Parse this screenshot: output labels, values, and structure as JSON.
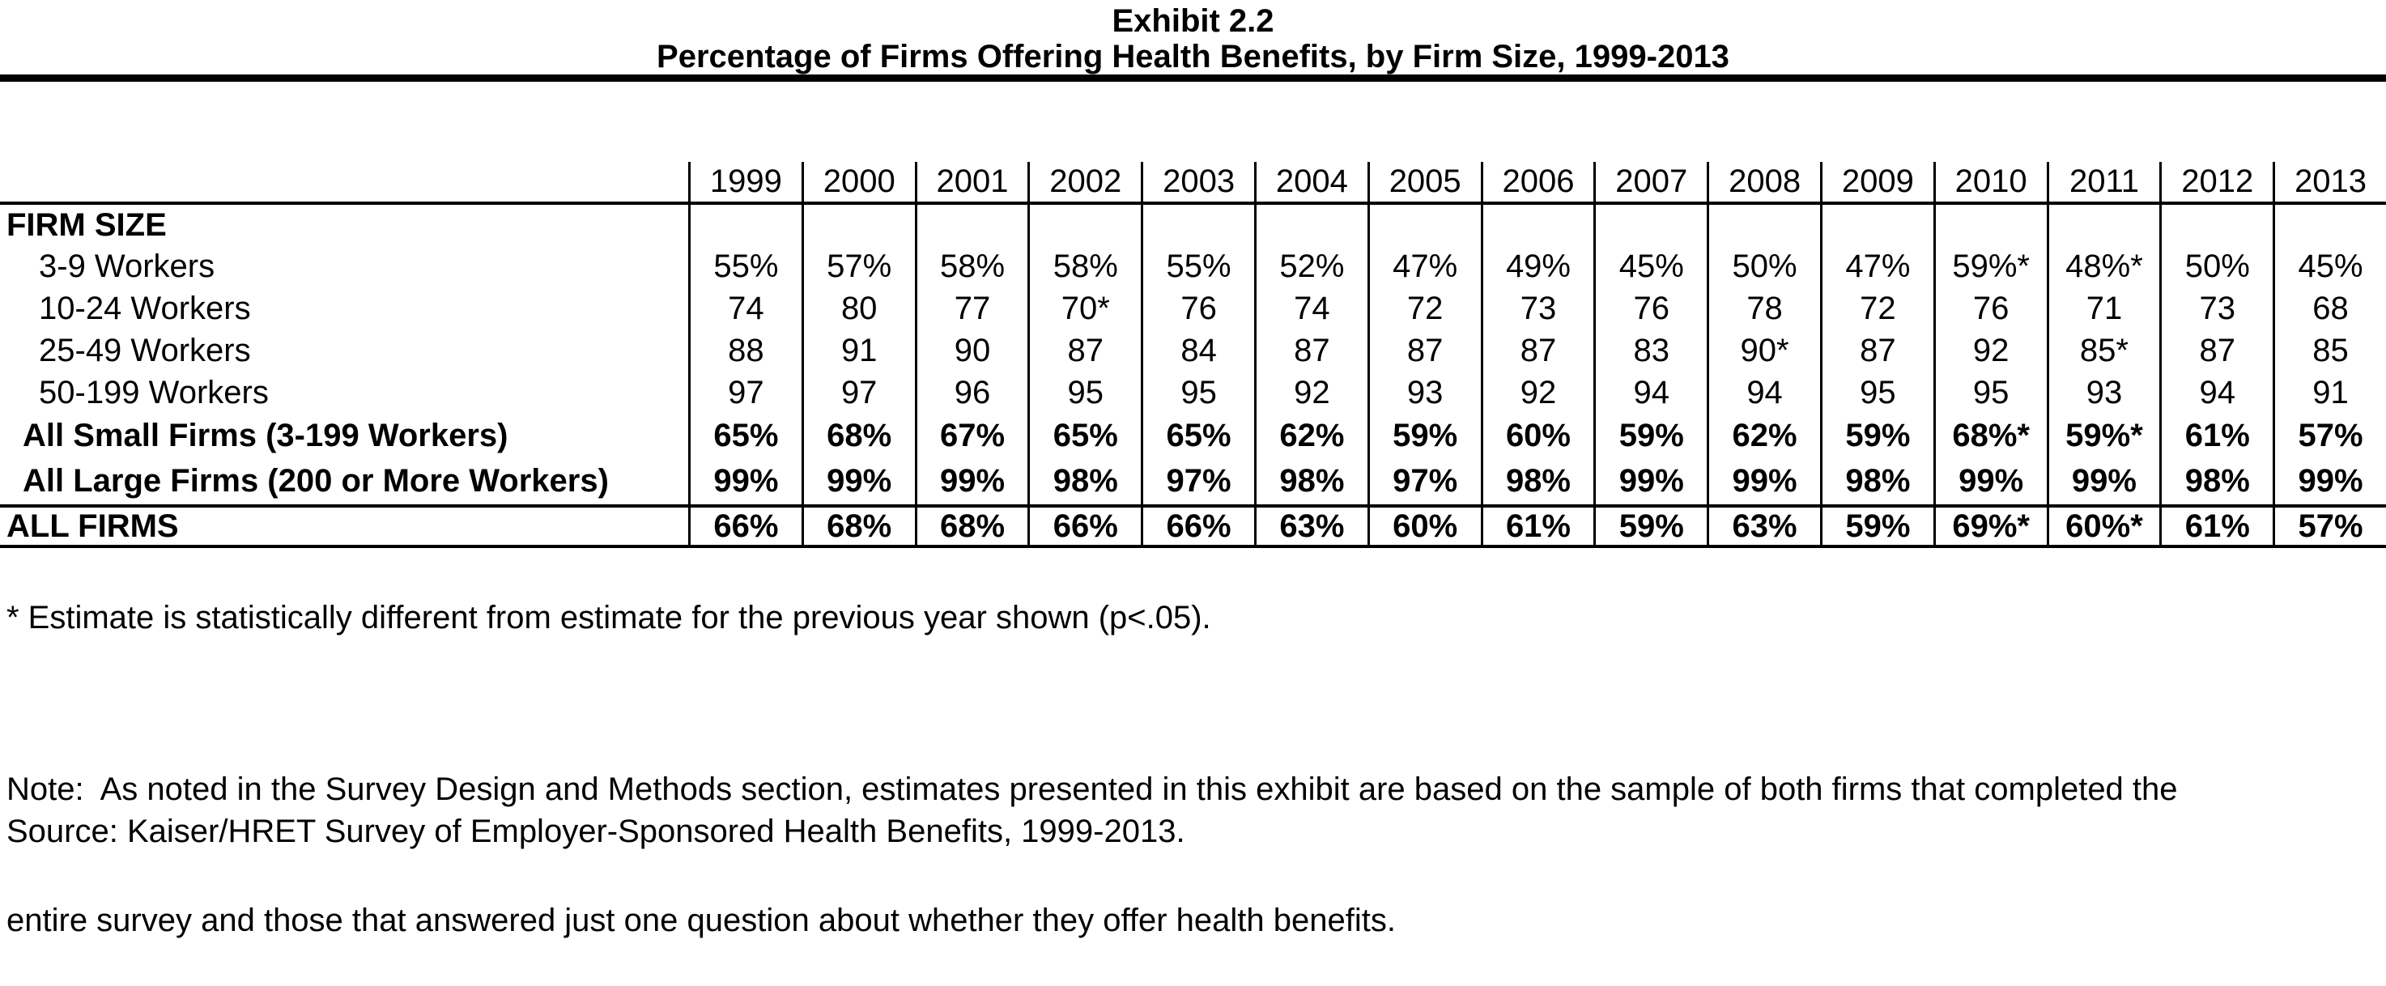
{
  "title": {
    "line1": "Exhibit 2.2",
    "line2": "Percentage of Firms Offering Health Benefits, by Firm Size, 1999-2013"
  },
  "table": {
    "years": [
      "1999",
      "2000",
      "2001",
      "2002",
      "2003",
      "2004",
      "2005",
      "2006",
      "2007",
      "2008",
      "2009",
      "2010",
      "2011",
      "2012",
      "2013"
    ],
    "rows": [
      {
        "label": "FIRM SIZE"
      },
      {
        "label": "3-9 Workers",
        "values": [
          "55%",
          "57%",
          "58%",
          "58%",
          "55%",
          "52%",
          "47%",
          "49%",
          "45%",
          "50%",
          "47%",
          "59%*",
          "48%*",
          "50%",
          "45%"
        ]
      },
      {
        "label": "10-24 Workers",
        "values": [
          "74",
          "80",
          "77",
          "70*",
          "76",
          "74",
          "72",
          "73",
          "76",
          "78",
          "72",
          "76",
          "71",
          "73",
          "68"
        ]
      },
      {
        "label": "25-49 Workers",
        "values": [
          "88",
          "91",
          "90",
          "87",
          "84",
          "87",
          "87",
          "87",
          "83",
          "90*",
          "87",
          "92",
          "85*",
          "87",
          "85"
        ]
      },
      {
        "label": "50-199 Workers",
        "values": [
          "97",
          "97",
          "96",
          "95",
          "95",
          "92",
          "93",
          "92",
          "94",
          "94",
          "95",
          "95",
          "93",
          "94",
          "91"
        ]
      },
      {
        "label": "All Small Firms (3-199 Workers)",
        "values": [
          "65%",
          "68%",
          "67%",
          "65%",
          "65%",
          "62%",
          "59%",
          "60%",
          "59%",
          "62%",
          "59%",
          "68%*",
          "59%*",
          "61%",
          "57%"
        ]
      },
      {
        "label": "All Large Firms (200 or More Workers)",
        "values": [
          "99%",
          "99%",
          "99%",
          "98%",
          "97%",
          "98%",
          "97%",
          "98%",
          "99%",
          "99%",
          "98%",
          "99%",
          "99%",
          "98%",
          "99%"
        ]
      },
      {
        "label": "ALL FIRMS",
        "values": [
          "66%",
          "68%",
          "68%",
          "66%",
          "66%",
          "63%",
          "60%",
          "61%",
          "59%",
          "63%",
          "59%",
          "69%*",
          "60%*",
          "61%",
          "57%"
        ]
      }
    ]
  },
  "notes": {
    "footnote": "* Estimate is statistically different from estimate for the previous year shown (p<.05).",
    "note_line1": "Note:  As noted in the Survey Design and Methods section, estimates presented in this exhibit are based on the sample of both firms that completed the",
    "note_line2": "entire survey and those that answered just one question about whether they offer health benefits.",
    "source": "Source: Kaiser/HRET Survey of Employer-Sponsored Health Benefits, 1999-2013."
  }
}
